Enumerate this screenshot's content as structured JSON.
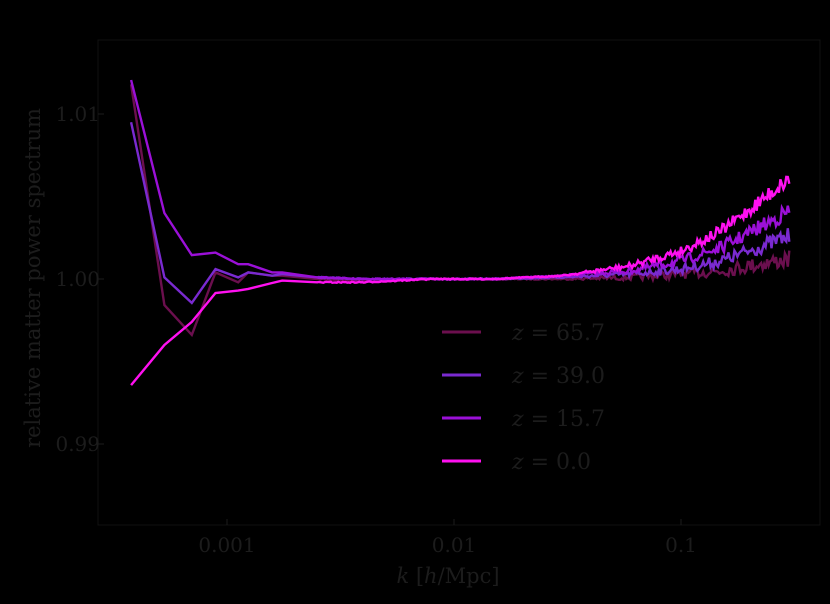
{
  "chart_data": {
    "type": "line",
    "title": "",
    "xlabel": "k [h/Mpc]",
    "ylabel": "relative matter power spectrum",
    "xscale": "log",
    "xlim": [
      0.00033,
      0.38
    ],
    "ylim": [
      0.9856,
      1.0149
    ],
    "xticks": [
      0.001,
      0.01,
      0.1
    ],
    "xtick_labels": [
      "0.001",
      "0.01",
      "0.1"
    ],
    "yticks": [
      0.99,
      1.0,
      1.01
    ],
    "ytick_labels": [
      "0.99",
      "1.00",
      "1.01"
    ],
    "grid": false,
    "legend_position": "lower right",
    "background": "#000000",
    "series": [
      {
        "name": "z = 65.7",
        "label_prefix": "z",
        "label_value": "65.7",
        "color": "#6b0f4e",
        "x": [
          0.000378,
          0.00053,
          0.0007,
          0.00089,
          0.00112,
          0.00124,
          0.00158,
          0.00175,
          0.0025,
          0.004,
          0.008,
          0.015,
          0.03,
          0.06,
          0.1,
          0.15,
          0.2,
          0.3
        ],
        "y": [
          1.0118,
          0.99842,
          0.99661,
          1.0004,
          0.9998,
          1.0004,
          1.0002,
          1.0002,
          1.0,
          0.9999,
          1.0,
          1.0,
          1.0,
          1.0001,
          1.0003,
          1.0005,
          1.0008,
          1.0012
        ]
      },
      {
        "name": "z = 39.0",
        "label_prefix": "z",
        "label_value": "39.0",
        "color": "#7a2ad0",
        "x": [
          0.000378,
          0.00053,
          0.0007,
          0.00089,
          0.00112,
          0.00124,
          0.00158,
          0.00175,
          0.0025,
          0.004,
          0.008,
          0.015,
          0.03,
          0.06,
          0.1,
          0.15,
          0.2,
          0.3
        ],
        "y": [
          1.0095,
          1.0001,
          0.99855,
          1.0006,
          1.0001,
          1.0004,
          1.0002,
          1.0003,
          1.0001,
          1.0,
          1.0,
          1.0,
          1.0001,
          1.0003,
          1.0006,
          1.0011,
          1.0017,
          1.0026
        ]
      },
      {
        "name": "z = 15.7",
        "label_prefix": "z",
        "label_value": "15.7",
        "color": "#9b10d8",
        "x": [
          0.000378,
          0.00053,
          0.0007,
          0.00089,
          0.00112,
          0.00124,
          0.00158,
          0.00175,
          0.0025,
          0.004,
          0.008,
          0.015,
          0.03,
          0.06,
          0.1,
          0.15,
          0.2,
          0.3
        ],
        "y": [
          1.01206,
          1.004,
          1.00145,
          1.0016,
          1.0009,
          1.0009,
          1.0004,
          1.0004,
          1.0001,
          1.0,
          1.0,
          1.0,
          1.0002,
          1.0005,
          1.0011,
          1.0019,
          1.0028,
          1.0041
        ]
      },
      {
        "name": "z = 0.0",
        "label_prefix": "z",
        "label_value": "0.0",
        "color": "#ff10f0",
        "x": [
          0.000378,
          0.00053,
          0.0007,
          0.00089,
          0.00112,
          0.00124,
          0.00158,
          0.00175,
          0.0025,
          0.004,
          0.008,
          0.015,
          0.03,
          0.06,
          0.1,
          0.15,
          0.2,
          0.3
        ],
        "y": [
          0.99357,
          0.996,
          0.9974,
          0.99915,
          0.9993,
          0.9994,
          0.99976,
          0.9999,
          0.9998,
          0.9998,
          1.0,
          1.0,
          1.0002,
          1.0008,
          1.0017,
          1.0029,
          1.0042,
          1.0061
        ]
      }
    ]
  }
}
